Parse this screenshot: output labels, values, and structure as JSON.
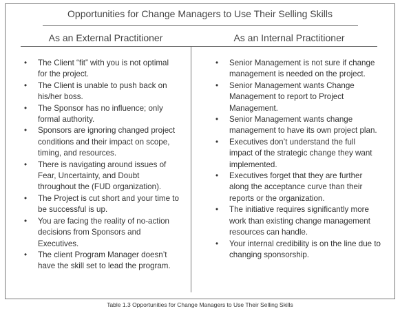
{
  "header": {
    "title": "Opportunities for Change Managers to Use Their Selling Skills"
  },
  "columns": [
    {
      "heading": "As an External Practitioner",
      "items": [
        "The Client “fit” with you is not optimal for the project.",
        "The Client is unable to push back on his/her boss.",
        "The Sponsor has no influence; only formal authority.",
        "Sponsors are ignoring changed project conditions and their impact on scope, timing, and resources.",
        "There is navigating around issues of Fear, Uncertainty, and Doubt throughout the (FUD organization).",
        "The Project is cut short and your time to be successful is up.",
        "You are facing the reality of no-action decisions from Sponsors and Executives.",
        "The client Program Manager doesn’t have the skill set to lead the program."
      ]
    },
    {
      "heading": "As an Internal Practitioner",
      "items": [
        "Senior Management is not sure if change management is needed on the project.",
        "Senior Management wants Change Management to report to Project Management.",
        "Senior Management wants change management to have its own project plan.",
        "Executives don’t understand the full impact of the strategic change they want implemented.",
        "Executives forget that they are further along the acceptance curve than their reports or the organization.",
        "The initiative requires significantly more work than existing change management resources can handle.",
        "Your internal credibility is on the line due to changing sponsorship."
      ]
    }
  ],
  "caption": "Table 1.3 Opportunities for Change Managers to Use Their Selling Skills"
}
